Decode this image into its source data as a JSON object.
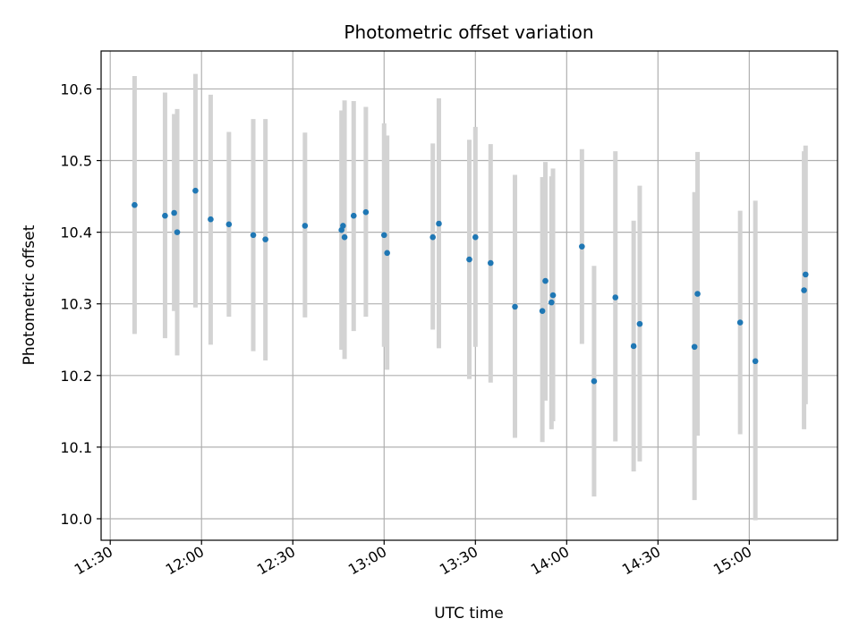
{
  "chart_data": {
    "type": "scatter",
    "title": "Photometric offset variation",
    "xlabel": "UTC time",
    "ylabel": "Photometric offset",
    "x_ticks": [
      "11:30",
      "12:00",
      "12:30",
      "13:00",
      "13:30",
      "14:00",
      "14:30",
      "15:00"
    ],
    "y_ticks": [
      "10.0",
      "10.1",
      "10.2",
      "10.3",
      "10.4",
      "10.5",
      "10.6"
    ],
    "xlim": [
      "11:27",
      "15:29"
    ],
    "ylim": [
      9.97,
      10.653
    ],
    "grid": true,
    "colors": {
      "point": "#1f77b4",
      "errorbar": "#d3d3d3"
    },
    "points": [
      {
        "x": "11:38",
        "y": 10.438,
        "lo": 10.258,
        "hi": 10.618
      },
      {
        "x": "11:48",
        "y": 10.423,
        "lo": 10.252,
        "hi": 10.595
      },
      {
        "x": "11:51",
        "y": 10.427,
        "lo": 10.29,
        "hi": 10.565
      },
      {
        "x": "11:52",
        "y": 10.4,
        "lo": 10.228,
        "hi": 10.572
      },
      {
        "x": "11:58",
        "y": 10.458,
        "lo": 10.295,
        "hi": 10.621
      },
      {
        "x": "12:03",
        "y": 10.418,
        "lo": 10.243,
        "hi": 10.592
      },
      {
        "x": "12:09",
        "y": 10.411,
        "lo": 10.282,
        "hi": 10.54
      },
      {
        "x": "12:17",
        "y": 10.396,
        "lo": 10.234,
        "hi": 10.558
      },
      {
        "x": "12:21",
        "y": 10.39,
        "lo": 10.221,
        "hi": 10.558
      },
      {
        "x": "12:34",
        "y": 10.409,
        "lo": 10.281,
        "hi": 10.539
      },
      {
        "x": "12:46",
        "y": 10.403,
        "lo": 10.236,
        "hi": 10.57
      },
      {
        "x": "12:46.5",
        "y": 10.409,
        "lo": 10.26,
        "hi": 10.558
      },
      {
        "x": "12:47",
        "y": 10.393,
        "lo": 10.223,
        "hi": 10.584
      },
      {
        "x": "12:50",
        "y": 10.423,
        "lo": 10.262,
        "hi": 10.583
      },
      {
        "x": "12:54",
        "y": 10.428,
        "lo": 10.282,
        "hi": 10.575
      },
      {
        "x": "13:00",
        "y": 10.396,
        "lo": 10.24,
        "hi": 10.552
      },
      {
        "x": "13:01",
        "y": 10.371,
        "lo": 10.208,
        "hi": 10.535
      },
      {
        "x": "13:16",
        "y": 10.393,
        "lo": 10.264,
        "hi": 10.524
      },
      {
        "x": "13:18",
        "y": 10.412,
        "lo": 10.238,
        "hi": 10.587
      },
      {
        "x": "13:28",
        "y": 10.362,
        "lo": 10.195,
        "hi": 10.529
      },
      {
        "x": "13:30",
        "y": 10.393,
        "lo": 10.24,
        "hi": 10.547
      },
      {
        "x": "13:35",
        "y": 10.357,
        "lo": 10.19,
        "hi": 10.523
      },
      {
        "x": "13:43",
        "y": 10.296,
        "lo": 10.113,
        "hi": 10.48
      },
      {
        "x": "13:52",
        "y": 10.29,
        "lo": 10.107,
        "hi": 10.477
      },
      {
        "x": "13:53",
        "y": 10.332,
        "lo": 10.165,
        "hi": 10.498
      },
      {
        "x": "13:55",
        "y": 10.302,
        "lo": 10.125,
        "hi": 10.478
      },
      {
        "x": "13:55.5",
        "y": 10.312,
        "lo": 10.136,
        "hi": 10.489
      },
      {
        "x": "14:05",
        "y": 10.38,
        "lo": 10.244,
        "hi": 10.516
      },
      {
        "x": "14:09",
        "y": 10.192,
        "lo": 10.031,
        "hi": 10.353
      },
      {
        "x": "14:16",
        "y": 10.309,
        "lo": 10.108,
        "hi": 10.513
      },
      {
        "x": "14:22",
        "y": 10.241,
        "lo": 10.066,
        "hi": 10.416
      },
      {
        "x": "14:24",
        "y": 10.272,
        "lo": 10.08,
        "hi": 10.465
      },
      {
        "x": "14:42",
        "y": 10.24,
        "lo": 10.026,
        "hi": 10.456
      },
      {
        "x": "14:43",
        "y": 10.314,
        "lo": 10.116,
        "hi": 10.512
      },
      {
        "x": "14:57",
        "y": 10.274,
        "lo": 10.118,
        "hi": 10.43
      },
      {
        "x": "15:02",
        "y": 10.22,
        "lo": 9.998,
        "hi": 10.444
      },
      {
        "x": "15:18",
        "y": 10.319,
        "lo": 10.125,
        "hi": 10.513
      },
      {
        "x": "15:18.5",
        "y": 10.341,
        "lo": 10.16,
        "hi": 10.521
      }
    ]
  }
}
